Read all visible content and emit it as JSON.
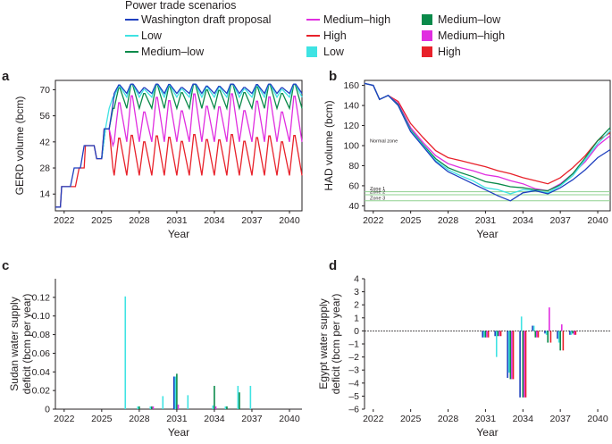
{
  "legend": {
    "title": "Power trade scenarios",
    "col1": [
      {
        "label": "Washington draft proposal",
        "color": "#1f3fbf",
        "kind": "line"
      },
      {
        "label": "Low",
        "color": "#3fe3e3",
        "kind": "line"
      },
      {
        "label": "Medium–low",
        "color": "#0a8a4a",
        "kind": "line"
      }
    ],
    "col2": [
      {
        "label": "Medium–high",
        "color": "#e02ee0",
        "kind": "line"
      },
      {
        "label": "High",
        "color": "#e8212a",
        "kind": "line"
      },
      {
        "label": "Low",
        "color": "#3fe3e3",
        "kind": "square"
      }
    ],
    "col3": [
      {
        "label": "Medium–low",
        "color": "#0a8a4a",
        "kind": "square"
      },
      {
        "label": "Medium–high",
        "color": "#e02ee0",
        "kind": "square"
      },
      {
        "label": "High",
        "color": "#e8212a",
        "kind": "square"
      }
    ]
  },
  "chart_data": [
    {
      "panel": "a",
      "type": "line",
      "xlabel": "Year",
      "ylabel": "GERD volume (bcm)",
      "xlim": [
        2021.3,
        2041.0
      ],
      "ylim": [
        5,
        75
      ],
      "xticks": [
        2022,
        2025,
        2028,
        2031,
        2034,
        2037,
        2040
      ],
      "yticks": [
        14,
        28,
        42,
        56,
        70
      ],
      "series": [
        {
          "name": "High",
          "color": "#e8212a",
          "points": [
            [
              2021.3,
              7
            ],
            [
              2021.7,
              7
            ],
            [
              2021.8,
              18
            ],
            [
              2022.9,
              18
            ],
            [
              2023.2,
              28
            ],
            [
              2023.6,
              28
            ],
            [
              2023.7,
              40
            ],
            [
              2024.4,
              40
            ],
            [
              2024.6,
              33
            ],
            [
              2025.0,
              33
            ],
            [
              2025.2,
              49
            ],
            [
              2025.6,
              49
            ],
            [
              2025.9,
              28
            ]
          ],
          "seasonal": {
            "start": 2026.0,
            "end": 2041.0,
            "amp": [
              18,
              22
            ],
            "low": 24,
            "period": 1.0
          }
        },
        {
          "name": "Medium–high",
          "color": "#e02ee0",
          "points": [
            [
              2025.0,
              33
            ],
            [
              2025.3,
              49
            ],
            [
              2025.6,
              49
            ],
            [
              2025.9,
              40
            ]
          ],
          "seasonal": {
            "start": 2026.0,
            "end": 2041.0,
            "amp": [
              16,
              26
            ],
            "low": 42,
            "period": 1.0
          }
        },
        {
          "name": "Medium–low",
          "color": "#0a8a4a",
          "points": [
            [
              2025.0,
              33
            ],
            [
              2025.3,
              49
            ],
            [
              2025.6,
              49
            ],
            [
              2025.9,
              60
            ]
          ],
          "seasonal": {
            "start": 2026.0,
            "end": 2041.0,
            "amp": [
              8,
              14
            ],
            "low": 60,
            "period": 1.0
          }
        },
        {
          "name": "Low",
          "color": "#3fe3e3",
          "points": [
            [
              2025.0,
              33
            ],
            [
              2025.3,
              49
            ],
            [
              2025.6,
              60
            ],
            [
              2025.9,
              66
            ]
          ],
          "seasonal": {
            "start": 2026.0,
            "end": 2041.0,
            "amp": [
              4,
              8
            ],
            "low": 66,
            "period": 1.0
          }
        },
        {
          "name": "Washington draft proposal",
          "color": "#1f3fbf",
          "points": [
            [
              2021.3,
              7
            ],
            [
              2021.7,
              7
            ],
            [
              2021.8,
              18
            ],
            [
              2022.5,
              18
            ],
            [
              2022.8,
              28
            ],
            [
              2023.3,
              28
            ],
            [
              2023.6,
              40
            ],
            [
              2024.4,
              40
            ],
            [
              2024.6,
              33
            ],
            [
              2025.0,
              33
            ],
            [
              2025.2,
              49
            ],
            [
              2025.6,
              49
            ],
            [
              2025.9,
              62
            ]
          ],
          "seasonal": {
            "start": 2026.0,
            "end": 2041.0,
            "amp": [
              3,
              6
            ],
            "low": 68,
            "period": 1.0
          }
        }
      ]
    },
    {
      "panel": "b",
      "type": "line",
      "xlabel": "Year",
      "ylabel": "HAD volume (bcm)",
      "xlim": [
        2021.3,
        2041.0
      ],
      "ylim": [
        35,
        165
      ],
      "xticks": [
        2022,
        2025,
        2028,
        2031,
        2034,
        2037,
        2040
      ],
      "yticks": [
        40,
        60,
        80,
        100,
        120,
        140,
        160
      ],
      "hlines": [
        {
          "label": "Normal zone",
          "y": 102
        },
        {
          "label": "Zone 1",
          "y": 54
        },
        {
          "label": "Zone 2",
          "y": 51
        },
        {
          "label": "Zone 3",
          "y": 45
        }
      ],
      "hline_color": "#8fd18f",
      "series": [
        {
          "name": "High",
          "color": "#e8212a",
          "points": [
            [
              2021.3,
              162
            ],
            [
              2022.0,
              160
            ],
            [
              2022.5,
              146
            ],
            [
              2023.2,
              150
            ],
            [
              2024.0,
              144
            ],
            [
              2025.0,
              122
            ],
            [
              2026.0,
              108
            ],
            [
              2027.0,
              95
            ],
            [
              2028.0,
              88
            ],
            [
              2029.0,
              85
            ],
            [
              2030.0,
              82
            ],
            [
              2031.0,
              79
            ],
            [
              2032.0,
              75
            ],
            [
              2033.0,
              72
            ],
            [
              2034.0,
              68
            ],
            [
              2035.0,
              65
            ],
            [
              2036.0,
              62
            ],
            [
              2037.0,
              68
            ],
            [
              2038.0,
              78
            ],
            [
              2039.0,
              90
            ],
            [
              2040.0,
              105
            ],
            [
              2041.0,
              113
            ]
          ]
        },
        {
          "name": "Medium–high",
          "color": "#e02ee0",
          "points": [
            [
              2021.3,
              162
            ],
            [
              2022.0,
              160
            ],
            [
              2022.5,
              146
            ],
            [
              2023.2,
              150
            ],
            [
              2024.0,
              142
            ],
            [
              2025.0,
              118
            ],
            [
              2026.0,
              103
            ],
            [
              2027.0,
              90
            ],
            [
              2028.0,
              82
            ],
            [
              2029.0,
              78
            ],
            [
              2030.0,
              75
            ],
            [
              2031.0,
              71
            ],
            [
              2032.0,
              69
            ],
            [
              2033.0,
              65
            ],
            [
              2034.0,
              62
            ],
            [
              2035.0,
              57
            ],
            [
              2036.0,
              55
            ],
            [
              2037.0,
              62
            ],
            [
              2038.0,
              72
            ],
            [
              2039.0,
              84
            ],
            [
              2040.0,
              100
            ],
            [
              2041.0,
              110
            ]
          ]
        },
        {
          "name": "Medium–low",
          "color": "#0a8a4a",
          "points": [
            [
              2021.3,
              162
            ],
            [
              2022.0,
              160
            ],
            [
              2022.5,
              146
            ],
            [
              2023.2,
              150
            ],
            [
              2024.0,
              141
            ],
            [
              2025.0,
              116
            ],
            [
              2026.0,
              101
            ],
            [
              2027.0,
              87
            ],
            [
              2028.0,
              78
            ],
            [
              2029.0,
              73
            ],
            [
              2030.0,
              69
            ],
            [
              2031.0,
              64
            ],
            [
              2032.0,
              62
            ],
            [
              2033.0,
              59
            ],
            [
              2034.0,
              58
            ],
            [
              2035.0,
              56
            ],
            [
              2036.0,
              55
            ],
            [
              2037.0,
              61
            ],
            [
              2038.0,
              72
            ],
            [
              2039.0,
              88
            ],
            [
              2040.0,
              105
            ],
            [
              2041.0,
              118
            ]
          ]
        },
        {
          "name": "Low",
          "color": "#3fe3e3",
          "points": [
            [
              2021.3,
              162
            ],
            [
              2022.0,
              160
            ],
            [
              2022.5,
              146
            ],
            [
              2023.2,
              150
            ],
            [
              2024.0,
              140
            ],
            [
              2025.0,
              115
            ],
            [
              2026.0,
              100
            ],
            [
              2027.0,
              85
            ],
            [
              2028.0,
              76
            ],
            [
              2029.0,
              70
            ],
            [
              2030.0,
              65
            ],
            [
              2031.0,
              58
            ],
            [
              2032.0,
              56
            ],
            [
              2033.0,
              52
            ],
            [
              2034.0,
              56
            ],
            [
              2035.0,
              55
            ],
            [
              2036.0,
              53
            ],
            [
              2037.0,
              60
            ],
            [
              2038.0,
              70
            ],
            [
              2039.0,
              86
            ],
            [
              2040.0,
              102
            ],
            [
              2041.0,
              115
            ]
          ]
        },
        {
          "name": "Washington draft proposal",
          "color": "#1f3fbf",
          "points": [
            [
              2021.3,
              162
            ],
            [
              2022.0,
              160
            ],
            [
              2022.5,
              146
            ],
            [
              2023.2,
              150
            ],
            [
              2024.0,
              140
            ],
            [
              2025.0,
              114
            ],
            [
              2026.0,
              99
            ],
            [
              2027.0,
              84
            ],
            [
              2028.0,
              74
            ],
            [
              2029.0,
              68
            ],
            [
              2030.0,
              62
            ],
            [
              2031.0,
              56
            ],
            [
              2032.0,
              50
            ],
            [
              2033.0,
              45
            ],
            [
              2034.0,
              53
            ],
            [
              2035.0,
              55
            ],
            [
              2036.0,
              52
            ],
            [
              2037.0,
              58
            ],
            [
              2038.0,
              66
            ],
            [
              2039.0,
              76
            ],
            [
              2040.0,
              88
            ],
            [
              2041.0,
              96
            ]
          ]
        }
      ]
    },
    {
      "panel": "c",
      "type": "bar",
      "xlabel": "Year",
      "ylabel": [
        "Sudan water supply",
        "deficit (bcm per year)"
      ],
      "xlim": [
        2021.3,
        2041.0
      ],
      "ylim": [
        0,
        0.14
      ],
      "xticks": [
        2022,
        2025,
        2028,
        2031,
        2034,
        2037,
        2040
      ],
      "yticks": [
        0,
        0.02,
        0.04,
        0.06,
        0.08,
        0.1,
        0.12
      ],
      "ytick_labels": [
        "0",
        "0.02",
        "0.04",
        "0.06",
        "0.08",
        "0.10",
        "0.12"
      ],
      "years": [
        2027,
        2028,
        2029,
        2030,
        2031,
        2032,
        2034,
        2035,
        2036,
        2037
      ],
      "series": [
        {
          "name": "Washington draft proposal",
          "color": "#1f3fbf",
          "values": [
            0,
            0,
            0,
            0,
            0.035,
            0,
            0,
            0,
            0,
            0
          ]
        },
        {
          "name": "Low",
          "color": "#3fe3e3",
          "values": [
            0.121,
            0.003,
            0.003,
            0.014,
            0.035,
            0.015,
            0.004,
            0.003,
            0.025,
            0.025
          ]
        },
        {
          "name": "Medium–low",
          "color": "#0a8a4a",
          "values": [
            0,
            0.003,
            0.003,
            0,
            0.038,
            0,
            0.025,
            0.003,
            0.018,
            0
          ]
        },
        {
          "name": "Medium–high",
          "color": "#e02ee0",
          "values": [
            0,
            0,
            0.003,
            0,
            0.005,
            0,
            0.003,
            0,
            0,
            0
          ]
        },
        {
          "name": "High",
          "color": "#e8212a",
          "values": [
            0,
            0,
            0,
            0,
            0,
            0,
            0,
            0,
            0,
            0
          ]
        }
      ]
    },
    {
      "panel": "d",
      "type": "bar",
      "xlabel": "Year",
      "ylabel": [
        "Egypt water supply",
        "deficit (bcm per year)"
      ],
      "xlim": [
        2021.3,
        2041.0
      ],
      "ylim": [
        -6,
        4
      ],
      "xticks": [
        2022,
        2025,
        2028,
        2031,
        2034,
        2037,
        2040
      ],
      "yticks": [
        -6,
        -5,
        -4,
        -3,
        -2,
        -1,
        0,
        1,
        2,
        3,
        4
      ],
      "ytick_labels": [
        "–6",
        "–5",
        "–4",
        "–3",
        "–2",
        "–1",
        "0",
        "1",
        "2",
        "3",
        "4"
      ],
      "years": [
        2031,
        2032,
        2033,
        2034,
        2035,
        2036,
        2037,
        2038
      ],
      "series": [
        {
          "name": "Washington draft proposal",
          "color": "#1f3fbf",
          "values": [
            -0.5,
            -0.4,
            -3.6,
            -5.1,
            0.4,
            -0.2,
            -0.6,
            -0.3
          ]
        },
        {
          "name": "Low",
          "color": "#3fe3e3",
          "values": [
            -0.5,
            -2.0,
            -3.2,
            1.1,
            0.4,
            -0.3,
            -0.9,
            -0.3
          ]
        },
        {
          "name": "Medium–low",
          "color": "#0a8a4a",
          "values": [
            -0.5,
            -0.4,
            -3.7,
            -5.1,
            -0.5,
            -0.9,
            -1.5,
            -0.2
          ]
        },
        {
          "name": "Medium–high",
          "color": "#e02ee0",
          "values": [
            -0.5,
            -0.4,
            -3.7,
            -5.1,
            -0.5,
            1.8,
            0.5,
            -0.3
          ]
        },
        {
          "name": "High",
          "color": "#e8212a",
          "values": [
            -0.5,
            -0.4,
            -3.7,
            -5.1,
            -0.5,
            -0.9,
            -1.5,
            -0.3
          ]
        }
      ]
    }
  ]
}
